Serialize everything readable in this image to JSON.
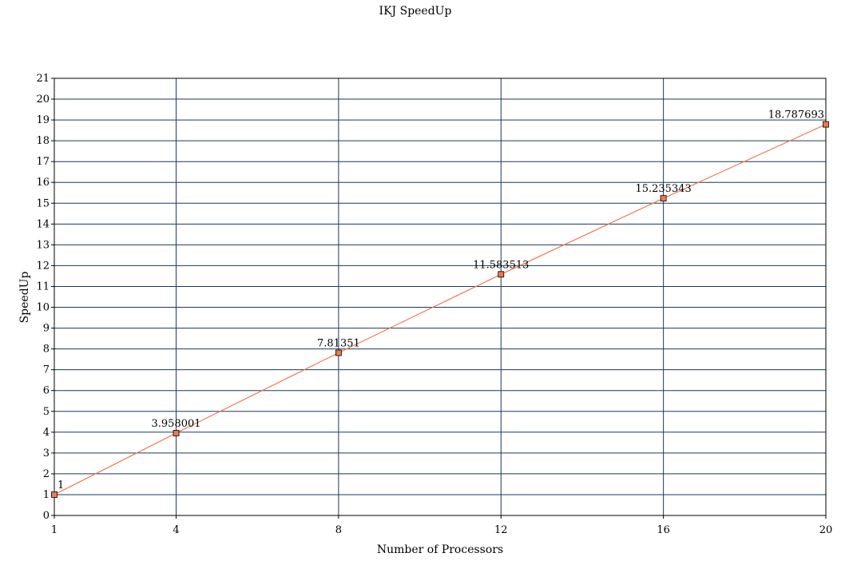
{
  "chart_data": {
    "type": "line",
    "title": "IKJ SpeedUp",
    "xlabel": "Number of Processors",
    "ylabel": "SpeedUp",
    "x": [
      1,
      4,
      8,
      12,
      16,
      20
    ],
    "x_tick_labels": [
      "1",
      "4",
      "8",
      "12",
      "16",
      "20"
    ],
    "ylim": [
      0,
      21
    ],
    "y_ticks": [
      0,
      1,
      2,
      3,
      4,
      5,
      6,
      7,
      8,
      9,
      10,
      11,
      12,
      13,
      14,
      15,
      16,
      17,
      18,
      19,
      20,
      21
    ],
    "grid": true,
    "legend": "none",
    "series": [
      {
        "values": [
          1,
          3.958001,
          7.81351,
          11.583513,
          15.235343,
          18.787693
        ],
        "labels": [
          "1",
          "3.958001",
          "7.81351",
          "11.583513",
          "15.235343",
          "18.787693"
        ],
        "color": "#f07850",
        "marker_color": "#f07850"
      }
    ],
    "colors": {
      "grid": "#1a3a5c",
      "frame": "#000000"
    }
  }
}
